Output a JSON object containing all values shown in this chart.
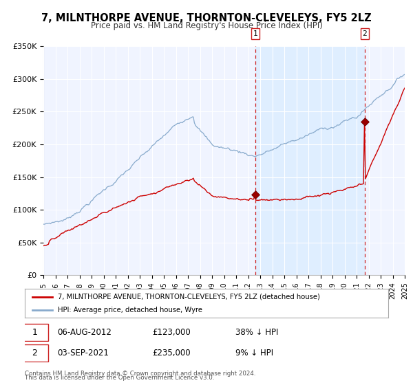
{
  "title": "7, MILNTHORPE AVENUE, THORNTON-CLEVELEYS, FY5 2LZ",
  "subtitle": "Price paid vs. HM Land Registry's House Price Index (HPI)",
  "legend_label_red": "7, MILNTHORPE AVENUE, THORNTON-CLEVELEYS, FY5 2LZ (detached house)",
  "legend_label_blue": "HPI: Average price, detached house, Wyre",
  "annotation1_date": "06-AUG-2012",
  "annotation1_price": "£123,000",
  "annotation1_pct": "38% ↓ HPI",
  "annotation2_date": "03-SEP-2021",
  "annotation2_price": "£235,000",
  "annotation2_pct": "9% ↓ HPI",
  "footer1": "Contains HM Land Registry data © Crown copyright and database right 2024.",
  "footer2": "This data is licensed under the Open Government Licence v3.0.",
  "xmin": 1995,
  "xmax": 2025,
  "ymin": 0,
  "ymax": 350000,
  "yticks": [
    0,
    50000,
    100000,
    150000,
    200000,
    250000,
    300000,
    350000
  ],
  "ytick_labels": [
    "£0",
    "£50K",
    "£100K",
    "£150K",
    "£200K",
    "£250K",
    "£300K",
    "£350K"
  ],
  "red_color": "#cc0000",
  "blue_color": "#88aacc",
  "shade_color": "#ddeeff",
  "vline_color": "#cc2222",
  "grid_color": "#cccccc",
  "plot_bg": "#f0f4ff",
  "sale1_year": 2012.59,
  "sale1_price": 123000,
  "sale2_year": 2021.67,
  "sale2_price": 235000
}
